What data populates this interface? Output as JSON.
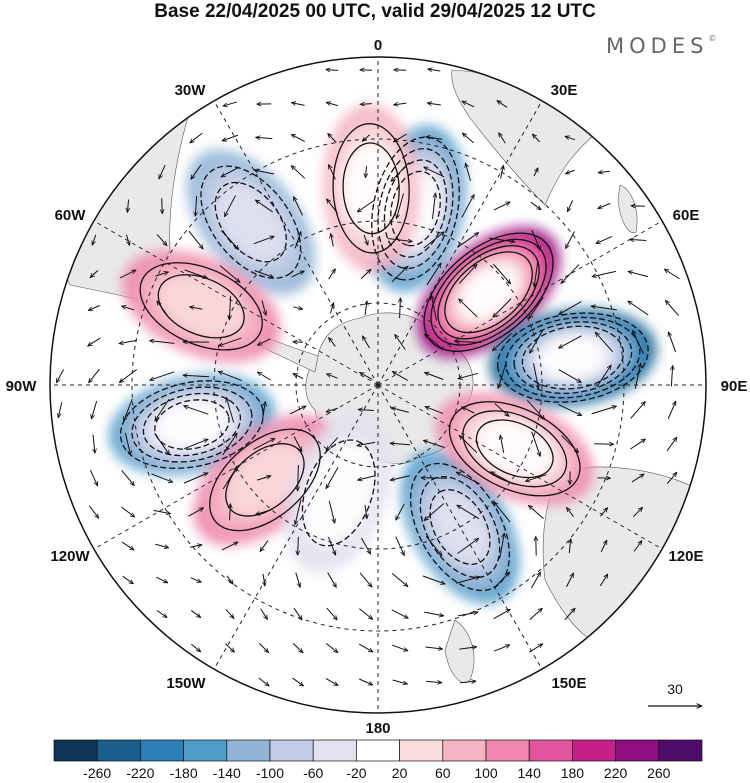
{
  "title": "Base 22/04/2025 00 UTC, valid 29/04/2025 12 UTC",
  "brand": "MODES",
  "brand_mark": "©",
  "map": {
    "projection": "south-polar-stereographic",
    "longitude_labels": [
      "0",
      "30E",
      "60E",
      "90E",
      "120E",
      "150E",
      "180",
      "150W",
      "120W",
      "90W",
      "60W",
      "30W"
    ],
    "reference_vector": {
      "value": "30"
    }
  },
  "colorbar": {
    "colors": [
      "#0d3553",
      "#1a5f8c",
      "#2c7fb8",
      "#4f9ccb",
      "#92b5d7",
      "#c0cce6",
      "#e2e1f0",
      "#ffffff",
      "#f9dcdc",
      "#f5b4c3",
      "#ef86ae",
      "#e2549e",
      "#c61f8b",
      "#8e0f82",
      "#4f0b6a"
    ],
    "tick_labels": [
      "-260",
      "-220",
      "-180",
      "-140",
      "-100",
      "-60",
      "-20",
      "20",
      "60",
      "100",
      "140",
      "180",
      "220",
      "260"
    ]
  },
  "anomalies": [
    {
      "lon": 50,
      "r": 0.44,
      "value": 250
    },
    {
      "lon": 82,
      "r": 0.6,
      "value": -255
    },
    {
      "lon": 12,
      "r": 0.55,
      "value": -170
    },
    {
      "lon": -2,
      "r": 0.6,
      "value": 90
    },
    {
      "lon": -38,
      "r": 0.63,
      "value": -110
    },
    {
      "lon": -66,
      "r": 0.59,
      "value": 110
    },
    {
      "lon": -102,
      "r": 0.58,
      "value": -170
    },
    {
      "lon": -130,
      "r": 0.45,
      "value": 120
    },
    {
      "lon": 150,
      "r": 0.5,
      "value": -150
    },
    {
      "lon": 115,
      "r": 0.46,
      "value": 130
    },
    {
      "lon": -160,
      "r": 0.35,
      "value": -60
    }
  ]
}
